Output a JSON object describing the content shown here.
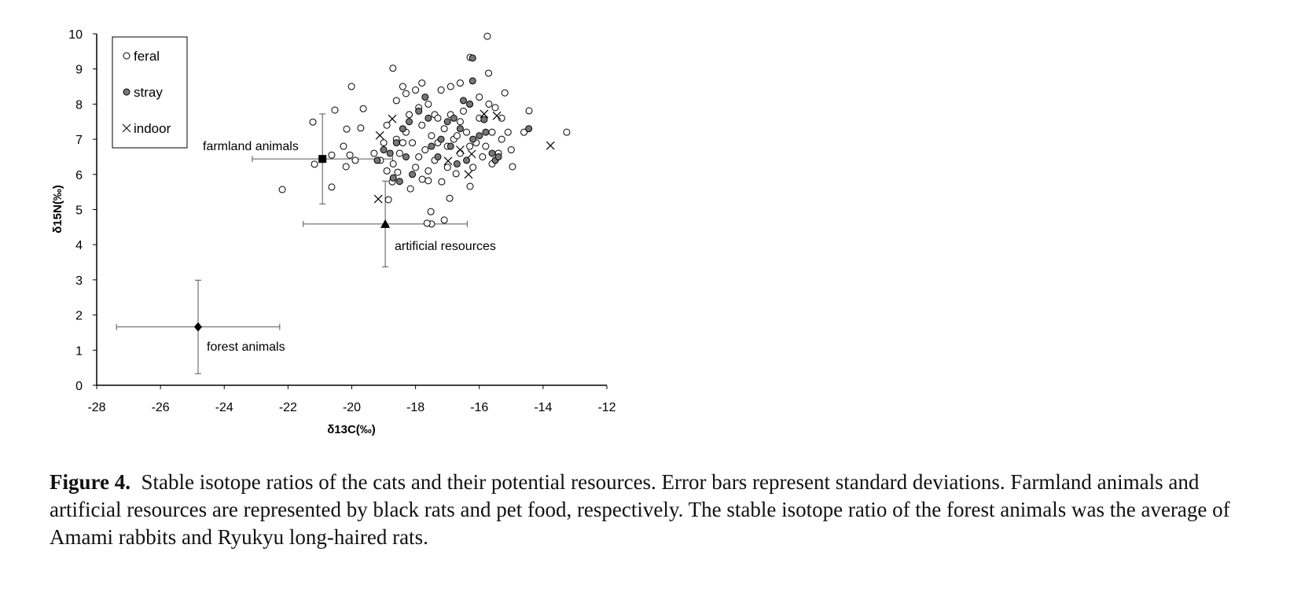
{
  "chart_data": {
    "type": "scatter",
    "xlabel": "δ13C(‰)",
    "ylabel": "δ15N(‰)",
    "xlim": [
      -28,
      -12
    ],
    "ylim": [
      0,
      10
    ],
    "xticks": [
      -28,
      -26,
      -24,
      -22,
      -20,
      -18,
      -16,
      -14,
      -12
    ],
    "yticks": [
      0,
      1,
      2,
      3,
      4,
      5,
      6,
      7,
      8,
      9,
      10
    ],
    "grid": false,
    "legend_position": "top-left",
    "series": [
      {
        "name": "feral",
        "marker": "open-circle",
        "points": [
          [
            -22.18,
            5.57
          ],
          [
            -21.17,
            6.29
          ],
          [
            -20.63,
            5.64
          ],
          [
            -20.53,
            7.83
          ],
          [
            -20.01,
            8.5
          ],
          [
            -19.64,
            7.87
          ],
          [
            -19.72,
            7.32
          ],
          [
            -20.16,
            7.29
          ],
          [
            -20.26,
            6.8
          ],
          [
            -20.63,
            6.55
          ],
          [
            -20.06,
            6.55
          ],
          [
            -19.89,
            6.4
          ],
          [
            -20.18,
            6.22
          ],
          [
            -21.22,
            7.49
          ],
          [
            -18.71,
            9.02
          ],
          [
            -15.75,
            9.93
          ],
          [
            -16.29,
            9.33
          ],
          [
            -15.71,
            8.88
          ],
          [
            -15.2,
            8.32
          ],
          [
            -14.96,
            6.22
          ],
          [
            -14.44,
            7.81
          ],
          [
            -13.26,
            7.2
          ],
          [
            -17.5,
            4.59
          ],
          [
            -17.64,
            4.61
          ],
          [
            -17.52,
            4.94
          ],
          [
            -17.1,
            4.7
          ],
          [
            -16.93,
            5.32
          ],
          [
            -16.29,
            5.66
          ],
          [
            -18.85,
            5.28
          ],
          [
            -18.73,
            5.79
          ],
          [
            -18.56,
            6.06
          ],
          [
            -18.16,
            5.59
          ],
          [
            -17.79,
            5.86
          ],
          [
            -17.6,
            5.82
          ],
          [
            -17.18,
            5.79
          ],
          [
            -16.73,
            6.02
          ],
          [
            -19.3,
            6.6
          ],
          [
            -19.0,
            6.9
          ],
          [
            -18.9,
            7.4
          ],
          [
            -18.6,
            8.1
          ],
          [
            -18.4,
            8.5
          ],
          [
            -18.3,
            8.3
          ],
          [
            -18.0,
            8.4
          ],
          [
            -17.8,
            8.6
          ],
          [
            -17.9,
            7.9
          ],
          [
            -17.6,
            8.0
          ],
          [
            -17.4,
            7.7
          ],
          [
            -17.2,
            8.4
          ],
          [
            -16.9,
            8.5
          ],
          [
            -16.6,
            8.6
          ],
          [
            -16.3,
            8.0
          ],
          [
            -16.0,
            8.2
          ],
          [
            -15.7,
            8.0
          ],
          [
            -15.5,
            7.9
          ],
          [
            -15.3,
            7.6
          ],
          [
            -15.1,
            7.2
          ],
          [
            -15.0,
            6.7
          ],
          [
            -15.4,
            6.6
          ],
          [
            -15.6,
            6.3
          ],
          [
            -15.9,
            6.5
          ],
          [
            -16.1,
            6.9
          ],
          [
            -16.4,
            7.2
          ],
          [
            -16.6,
            7.5
          ],
          [
            -16.8,
            7.0
          ],
          [
            -17.0,
            6.8
          ],
          [
            -17.1,
            7.3
          ],
          [
            -17.3,
            7.6
          ],
          [
            -17.5,
            7.1
          ],
          [
            -17.7,
            6.7
          ],
          [
            -17.9,
            6.5
          ],
          [
            -18.1,
            6.9
          ],
          [
            -18.3,
            7.2
          ],
          [
            -18.5,
            6.6
          ],
          [
            -18.7,
            6.3
          ],
          [
            -18.9,
            6.1
          ],
          [
            -19.1,
            6.4
          ],
          [
            -18.2,
            7.7
          ],
          [
            -17.8,
            7.4
          ],
          [
            -17.4,
            6.4
          ],
          [
            -17.0,
            6.2
          ],
          [
            -16.6,
            6.6
          ],
          [
            -16.2,
            6.2
          ],
          [
            -15.8,
            6.8
          ],
          [
            -15.6,
            7.2
          ],
          [
            -16.0,
            7.6
          ],
          [
            -16.5,
            7.8
          ],
          [
            -16.9,
            7.7
          ],
          [
            -17.3,
            6.9
          ],
          [
            -17.6,
            6.1
          ],
          [
            -18.0,
            6.2
          ],
          [
            -18.4,
            6.9
          ],
          [
            -18.6,
            7.0
          ],
          [
            -16.7,
            7.1
          ],
          [
            -16.3,
            6.8
          ],
          [
            -15.3,
            7.0
          ],
          [
            -14.6,
            7.2
          ]
        ]
      },
      {
        "name": "stray",
        "marker": "grey-circle",
        "points": [
          [
            -16.21,
            9.31
          ],
          [
            -16.21,
            8.66
          ],
          [
            -15.85,
            7.56
          ],
          [
            -14.45,
            7.3
          ],
          [
            -19.0,
            6.7
          ],
          [
            -18.8,
            6.6
          ],
          [
            -18.6,
            6.9
          ],
          [
            -18.4,
            7.3
          ],
          [
            -18.2,
            7.5
          ],
          [
            -17.9,
            7.8
          ],
          [
            -17.7,
            8.2
          ],
          [
            -17.5,
            6.8
          ],
          [
            -17.3,
            6.5
          ],
          [
            -17.0,
            7.5
          ],
          [
            -16.8,
            7.6
          ],
          [
            -16.6,
            7.3
          ],
          [
            -16.4,
            6.4
          ],
          [
            -16.2,
            7.0
          ],
          [
            -16.0,
            7.1
          ],
          [
            -15.8,
            7.2
          ],
          [
            -15.6,
            6.6
          ],
          [
            -15.5,
            6.4
          ],
          [
            -16.5,
            8.1
          ],
          [
            -16.9,
            6.8
          ],
          [
            -17.2,
            7.0
          ],
          [
            -18.5,
            5.8
          ],
          [
            -18.7,
            5.9
          ],
          [
            -18.1,
            6.0
          ],
          [
            -19.2,
            6.4
          ],
          [
            -17.6,
            7.6
          ],
          [
            -16.3,
            8.0
          ],
          [
            -15.4,
            6.5
          ],
          [
            -16.7,
            6.3
          ],
          [
            -18.3,
            6.5
          ]
        ]
      },
      {
        "name": "indoor",
        "marker": "cross",
        "points": [
          [
            -19.12,
            7.11
          ],
          [
            -18.73,
            7.58
          ],
          [
            -19.17,
            5.3
          ],
          [
            -15.85,
            7.72
          ],
          [
            -15.45,
            7.67
          ],
          [
            -13.77,
            6.82
          ],
          [
            -16.34,
            6.0
          ],
          [
            -16.24,
            6.58
          ],
          [
            -16.98,
            6.38
          ],
          [
            -16.6,
            6.7
          ]
        ]
      }
    ],
    "resources": [
      {
        "name": "farmland animals",
        "marker": "square",
        "x": -20.92,
        "y": 6.44,
        "sd_x": 2.2,
        "sd_y": 1.28
      },
      {
        "name": "artificial resources",
        "marker": "triangle",
        "x": -18.95,
        "y": 4.59,
        "sd_x": 2.57,
        "sd_y": 1.22
      },
      {
        "name": "forest animals",
        "marker": "diamond",
        "x": -24.82,
        "y": 1.66,
        "sd_x": 2.56,
        "sd_y": 1.33
      }
    ]
  },
  "caption": {
    "label": "Figure 4.",
    "text": "Stable isotope ratios of the cats and their potential resources. Error bars represent standard deviations. Farmland animals and artificial resources are represented by black rats and pet food, respectively. The stable isotope ratio of the forest animals was the average of Amami rabbits and Ryukyu long-haired rats."
  }
}
